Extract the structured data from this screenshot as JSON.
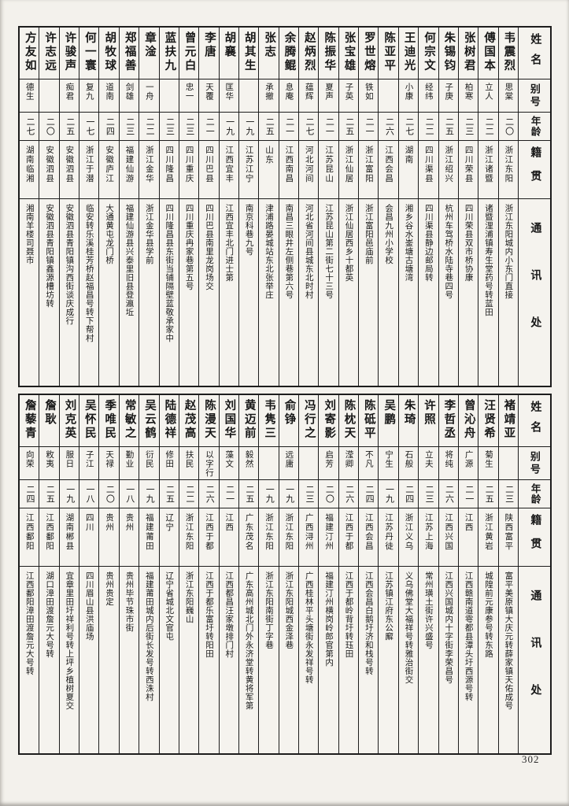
{
  "page": {
    "number": "302"
  },
  "headers": {
    "name": "姓名",
    "alias": "别号",
    "age": "年龄",
    "native": "籍贯",
    "address": "通讯处"
  },
  "top_table": {
    "people": [
      {
        "name": "韦震烈",
        "alias": "思棠",
        "age": "二〇",
        "native": "浙江东阳",
        "address": "浙江东阳城内小东门直接"
      },
      {
        "name": "傅国本",
        "alias": "立人",
        "age": "二二",
        "native": "浙江诸暨",
        "address": "诸暨浬浦镇寿生堂药号转蓝田"
      },
      {
        "name": "张树君",
        "alias": "柏寒",
        "age": "二三",
        "native": "四川荣县",
        "address": "四川荣县双市桥协康"
      },
      {
        "name": "朱锡钧",
        "alias": "子庚",
        "age": "二五",
        "native": "浙江绍兴",
        "address": "杭州车驾桥水陆寺巷四号"
      },
      {
        "name": "何宗文",
        "alias": "经纬",
        "age": "二二",
        "native": "四川渠县",
        "address": "四川渠县静边邮局转"
      },
      {
        "name": "王迪光",
        "alias": "小康",
        "age": "二七",
        "native": "湖南",
        "address": "湘乡谷水崟塘古塘湾"
      },
      {
        "name": "陈亚平",
        "alias": "",
        "age": "二六",
        "native": "江西会昌",
        "address": "会昌九州小学校"
      },
      {
        "name": "罗世熔",
        "alias": "铁如",
        "age": "二一",
        "native": "浙江富阳",
        "address": "浙江富阳邑庙前"
      },
      {
        "name": "张宝雄",
        "alias": "子英",
        "age": "二五",
        "native": "浙江仙居",
        "address": "浙江仙居西乡十都英"
      },
      {
        "name": "陈振华",
        "alias": "夏声",
        "age": "二一",
        "native": "江苏昆山",
        "address": "江苏昆山第二街七十三号"
      },
      {
        "name": "赵炳烈",
        "alias": "蕴辉",
        "age": "二七",
        "native": "河北河间",
        "address": "河北省河间县城东北时村"
      },
      {
        "name": "余腾鲲",
        "alias": "息庵",
        "age": "二一",
        "native": "江西南昌",
        "address": "南昌三眼井左侧巷第六号"
      },
      {
        "name": "张志",
        "alias": "承撤",
        "age": "二五",
        "native": "山东",
        "address": "津浦路晏城站东北张举庄"
      },
      {
        "name": "胡其生",
        "alias": "",
        "age": "一九",
        "native": "江苏江宁",
        "address": "南京科巷九号"
      },
      {
        "name": "胡襄",
        "alias": "匡华",
        "age": "一九",
        "native": "江西宜丰",
        "address": "江西宜丰北门进士第"
      },
      {
        "name": "李唐",
        "alias": "天覆",
        "age": "二一",
        "native": "四川巴县",
        "address": "四川巴县南里龙岗场交"
      },
      {
        "name": "曾元白",
        "alias": "忠一",
        "age": "二三",
        "native": "四川重庆",
        "address": "四川重庆冉家巷第五号"
      },
      {
        "name": "蓝扶九",
        "alias": "",
        "age": "二三",
        "native": "四川隆昌",
        "address": "四川隆昌县东街当铺隔壁蓝敬承家中"
      },
      {
        "name": "章淦",
        "alias": "一舟",
        "age": "二二",
        "native": "浙江金华",
        "address": "浙江金华县学前"
      },
      {
        "name": "郑福善",
        "alias": "剑雄",
        "age": "二三",
        "native": "福建仙游",
        "address": "福建仙游县兴泰里旧县登瀛坵"
      },
      {
        "name": "胡牧球",
        "alias": "道南",
        "age": "二四",
        "native": "安徽庐江",
        "address": "大通黄屯龙门桥"
      },
      {
        "name": "何一寰",
        "alias": "复九",
        "age": "一七",
        "native": "浙江于潜",
        "address": "临安转乐溪桂芳桥赵福昌号转下帮村"
      },
      {
        "name": "许骏声",
        "alias": "痴君",
        "age": "二五",
        "native": "安徽泗县",
        "address": "安徽泗县青阳镇沟西街谈庆成行"
      },
      {
        "name": "许志远",
        "alias": "",
        "age": "二〇",
        "native": "安徽泗县",
        "address": "安徽泗县青阳镇鑫源槽坊转"
      },
      {
        "name": "方友如",
        "alias": "德生",
        "age": "二七",
        "native": "湖南临湘",
        "address": "湘南羊楼司聂市"
      }
    ]
  },
  "bottom_table": {
    "people": [
      {
        "name": "褚靖亚",
        "alias": "",
        "age": "二三",
        "native": "陕西富平",
        "address": "富平美原镇大庆元转薛家镇天佑成号"
      },
      {
        "name": "汪贤希",
        "alias": "菊生",
        "age": "二五",
        "native": "浙江黄岩",
        "address": "城隍前元康参号转东路"
      },
      {
        "name": "曾沁舟",
        "alias": "广源",
        "age": "二一",
        "native": "江西",
        "address": "江西赣南道雩都县潭头圩西源号转"
      },
      {
        "name": "李哲丞",
        "alias": "将纯",
        "age": "二六",
        "native": "江西兴国",
        "address": "江西兴国城内十字街李荣昌号"
      },
      {
        "name": "许照",
        "alias": "立夫",
        "age": "二三",
        "native": "江苏上海",
        "address": "常州璜土街许兴盛号"
      },
      {
        "name": "朱琦",
        "alias": "石般",
        "age": "二四",
        "native": "浙江义乌",
        "address": "义乌佛堂大福祥号转雅治街交"
      },
      {
        "name": "吴鹏",
        "alias": "宁生",
        "age": "一九",
        "native": "江苏丹徒",
        "address": "江苏镇江府东公廨"
      },
      {
        "name": "陈砥平",
        "alias": "不凡",
        "age": "二四",
        "native": "江西会昌",
        "address": "江西会昌白鹅圩济和栈号转"
      },
      {
        "name": "陈枕天",
        "alias": "滢卿",
        "age": "二六",
        "native": "江西于都",
        "address": "江西于都岭背圩转珏田"
      },
      {
        "name": "刘寄影",
        "alias": "启芳",
        "age": "二〇",
        "native": "福建汀州",
        "address": "福建汀州横岗岭郎官第内"
      },
      {
        "name": "冯行之",
        "alias": "",
        "age": "二三",
        "native": "广西浔州",
        "address": "广西桂林平头塘街永发祥号转"
      },
      {
        "name": "俞铮",
        "alias": "远庸",
        "age": "一九",
        "native": "浙江东阳",
        "address": "浙江东阳城西金泽巷"
      },
      {
        "name": "韦隽三",
        "alias": "",
        "age": "一九",
        "native": "浙江东阳",
        "address": "浙江东阳南街丁字巷"
      },
      {
        "name": "黄迈前",
        "alias": "毅然",
        "age": "二五",
        "native": "广东茂名",
        "address": "广东高州城北门外永济堂转黄将军第"
      },
      {
        "name": "刘国华",
        "alias": "藻文",
        "age": "二一",
        "native": "江西",
        "address": "江西都昌汪家墩排门村"
      },
      {
        "name": "陈漫天",
        "alias": "以字行",
        "age": "二六",
        "native": "江西于都",
        "address": "江西于都乐富圩转阳田"
      },
      {
        "name": "赵茂高",
        "alias": "扶民",
        "age": "二二",
        "native": "浙江东阳",
        "address": "浙江东阳巍山"
      },
      {
        "name": "陆德祥",
        "alias": "修田",
        "age": "二五",
        "native": "辽宁",
        "address": "辽宁省城北文官屯"
      },
      {
        "name": "吴云鹤",
        "alias": "衍民",
        "age": "一九",
        "native": "福建莆田",
        "address": "福建莆田城内后街长发号转西洙村"
      },
      {
        "name": "常敏之",
        "alias": "勤业",
        "age": "一八",
        "native": "贵州",
        "address": "贵州毕节珠市街"
      },
      {
        "name": "季唯民",
        "alias": "天禄",
        "age": "二〇",
        "native": "贵州",
        "address": "贵州贵定"
      },
      {
        "name": "吴怀民",
        "alias": "子江",
        "age": "一八",
        "native": "四川",
        "address": "四川眉山县洪庙场"
      },
      {
        "name": "刘克英",
        "alias": "服日",
        "age": "一九",
        "native": "湖南郴县",
        "address": "宜章里田圩祥利号转上坪乡植树夏交"
      },
      {
        "name": "詹耿",
        "alias": "敉夷",
        "age": "二五",
        "native": "江西鄱阳",
        "address": "湖口漳田渡詹元大号转"
      },
      {
        "name": "詹藜青",
        "alias": "向荣",
        "age": "二四",
        "native": "江西鄱阳",
        "address": "江西鄱阳漳田渡詹元大号转"
      }
    ]
  }
}
